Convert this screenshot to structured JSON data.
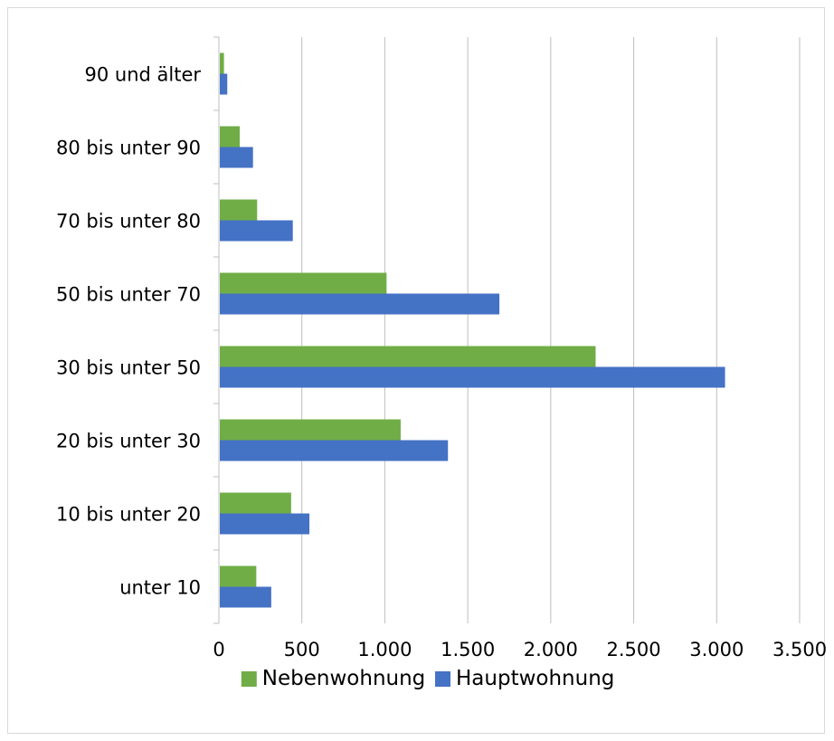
{
  "chart_data": {
    "type": "bar",
    "orientation": "horizontal",
    "categories": [
      "unter 10",
      "10 bis unter 20",
      "20 bis unter 30",
      "30 bis unter 50",
      "50 bis unter 70",
      "70 bis unter 80",
      "80 bis unter 90",
      "90 und älter"
    ],
    "series": [
      {
        "name": "Nebenwohnung",
        "color": "#70ad47",
        "values": [
          220,
          430,
          1090,
          2265,
          1005,
          225,
          120,
          25
        ]
      },
      {
        "name": "Hauptwohnung",
        "color": "#4472c4",
        "values": [
          310,
          540,
          1375,
          3045,
          1685,
          440,
          200,
          45
        ]
      }
    ],
    "x_ticks": [
      "0",
      "500",
      "1.000",
      "1.500",
      "2.000",
      "2.500",
      "3.000",
      "3.500"
    ],
    "xlim": [
      0,
      3500
    ],
    "grid": true,
    "legend": "bottom",
    "title": "",
    "xlabel": "",
    "ylabel": ""
  }
}
